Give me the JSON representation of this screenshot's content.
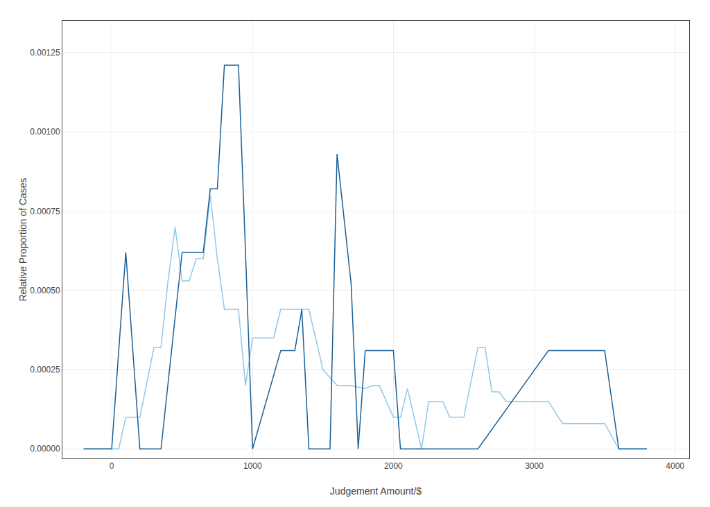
{
  "chart_data": {
    "type": "line",
    "xlabel": "Judgement Amount/$",
    "ylabel": "Relative Proportion of Cases",
    "grid": true,
    "xlim": [
      -350,
      4100
    ],
    "ylim": [
      -3e-05,
      0.00135
    ],
    "xticks": [
      0,
      1000,
      2000,
      3000,
      4000
    ],
    "yticks": [
      {
        "value": 0.0,
        "label": "0.00000"
      },
      0.00025,
      {
        "value": 0.0005,
        "label": "0.00050"
      },
      0.00075,
      {
        "value": 0.001,
        "label": "0.00100"
      },
      0.00125
    ],
    "series": [
      {
        "color": "#8ec8e8",
        "x": [
          -200,
          -100,
          0,
          50,
          100,
          200,
          300,
          350,
          400,
          450,
          500,
          550,
          600,
          650,
          700,
          750,
          800,
          850,
          900,
          950,
          1000,
          1050,
          1100,
          1150,
          1200,
          1300,
          1400,
          1500,
          1600,
          1700,
          1800,
          1850,
          1900,
          2000,
          2050,
          2100,
          2200,
          2250,
          2300,
          2350,
          2400,
          2500,
          2600,
          2650,
          2700,
          2750,
          2800,
          2850,
          2900,
          3000,
          3050,
          3100,
          3200,
          3300,
          3400,
          3500,
          3600,
          3700,
          3800
        ],
        "values": [
          0.0,
          0.0,
          0.0,
          0.0,
          0.0001,
          0.0001,
          0.00032,
          0.00032,
          0.00053,
          0.0007,
          0.00053,
          0.00053,
          0.0006,
          0.0006,
          0.0008,
          0.0006,
          0.00044,
          0.00044,
          0.00044,
          0.0002,
          0.00035,
          0.00035,
          0.00035,
          0.00035,
          0.00044,
          0.00044,
          0.00044,
          0.00025,
          0.0002,
          0.0002,
          0.00019,
          0.0002,
          0.0002,
          0.0001,
          0.0001,
          0.00019,
          0.0,
          0.00015,
          0.00015,
          0.00015,
          0.0001,
          0.0001,
          0.00032,
          0.00032,
          0.00018,
          0.00018,
          0.00015,
          0.00015,
          0.00015,
          0.00015,
          0.00015,
          0.00015,
          8e-05,
          8e-05,
          8e-05,
          8e-05,
          0.0,
          0.0,
          0.0
        ]
      },
      {
        "color": "#1a5f96",
        "x": [
          -200,
          -100,
          0,
          100,
          200,
          300,
          350,
          500,
          600,
          650,
          700,
          750,
          800,
          850,
          900,
          950,
          1000,
          1200,
          1250,
          1300,
          1350,
          1400,
          1500,
          1550,
          1600,
          1700,
          1750,
          1800,
          1850,
          1900,
          1950,
          2000,
          2050,
          2100,
          2600,
          3100,
          3200,
          3500,
          3600,
          3700,
          3800
        ],
        "values": [
          0.0,
          0.0,
          0.0,
          0.00062,
          0.0,
          0.0,
          0.0,
          0.00062,
          0.00062,
          0.00062,
          0.00082,
          0.00082,
          0.00121,
          0.00121,
          0.00121,
          0.00062,
          0.0,
          0.00031,
          0.00031,
          0.00031,
          0.00044,
          0.0,
          0.0,
          0.0,
          0.00093,
          0.00052,
          0.0,
          0.00031,
          0.00031,
          0.00031,
          0.00031,
          0.00031,
          0.0,
          0.0,
          0.0,
          0.00031,
          0.00031,
          0.00031,
          0.0,
          0.0,
          0.0
        ]
      }
    ]
  }
}
